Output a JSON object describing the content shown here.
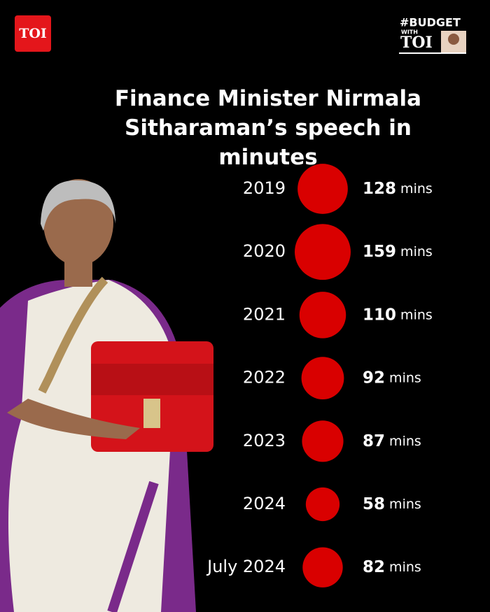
{
  "header": {
    "logo": "TOI",
    "badge_title": "#BUDGET",
    "badge_with": "WITH",
    "badge_brand": "TOI"
  },
  "chart_data": {
    "type": "bubble",
    "title": "Finance Minister Nirmala Sitharaman’s speech in minutes",
    "categories": [
      "2019",
      "2020",
      "2021",
      "2022",
      "2023",
      "2024",
      "July 2024"
    ],
    "values": [
      128,
      159,
      110,
      92,
      87,
      58,
      82
    ],
    "value_labels": [
      "128 mins",
      "159 mins",
      "110 mins",
      "92 mins",
      "87 mins",
      "58 mins",
      "82 mins"
    ],
    "color": "#d90000"
  }
}
